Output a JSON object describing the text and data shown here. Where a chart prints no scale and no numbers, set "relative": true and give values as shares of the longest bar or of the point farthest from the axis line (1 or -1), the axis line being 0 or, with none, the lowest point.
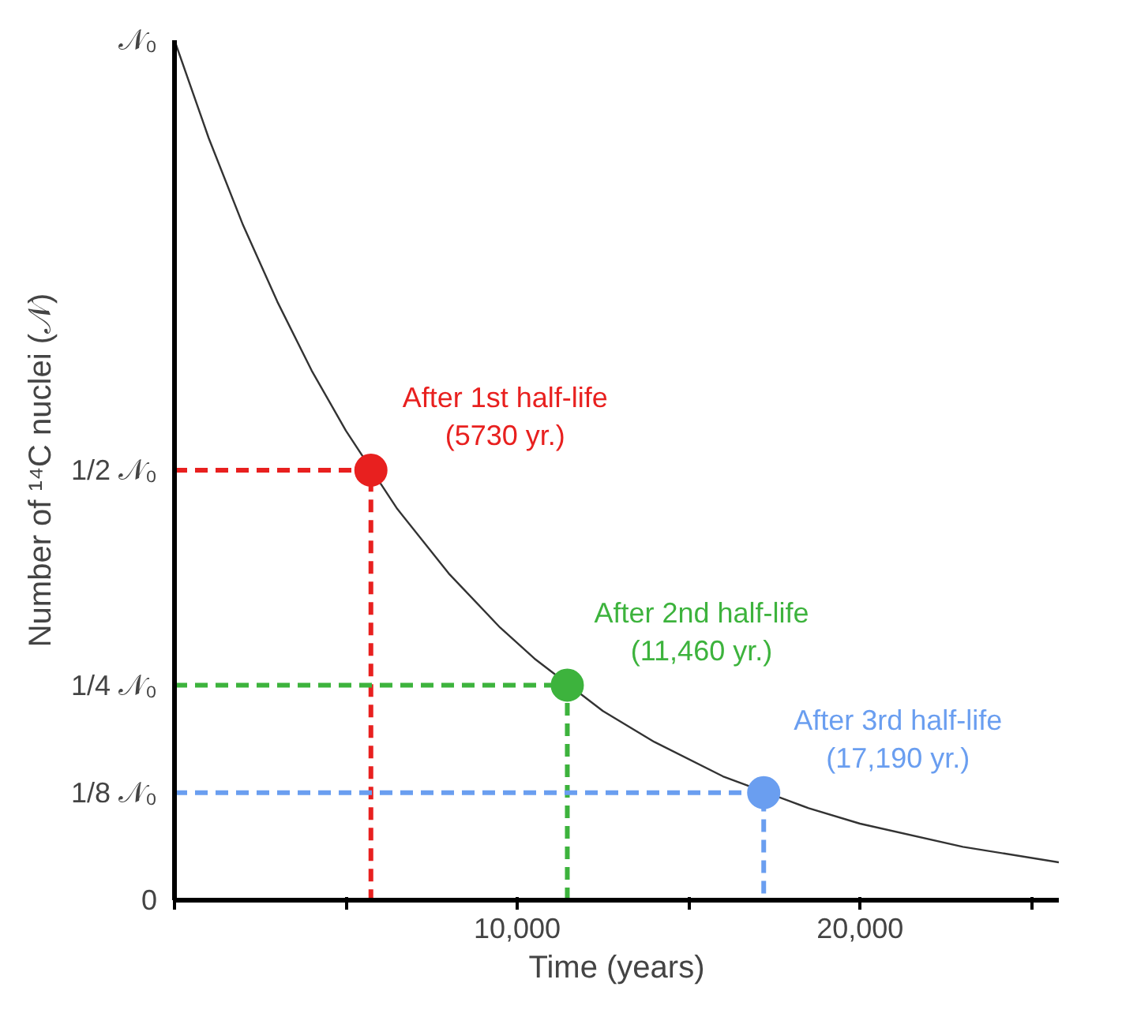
{
  "chart_data": {
    "type": "line",
    "relative": true,
    "xlabel": "Time (years)",
    "ylabel": "Number of ¹⁴C nuclei (𝒩)",
    "xlim": [
      0,
      25800
    ],
    "xticks": [
      {
        "value": 0,
        "label": null
      },
      {
        "value": 5000,
        "label": null
      },
      {
        "value": 10000,
        "label": "10,000"
      },
      {
        "value": 15000,
        "label": null
      },
      {
        "value": 20000,
        "label": "20,000"
      },
      {
        "value": 25000,
        "label": null
      }
    ],
    "grid": false,
    "series": [
      {
        "color": "#333333",
        "line_style": "solid",
        "marker": "none",
        "x": [
          0,
          1000,
          2000,
          3000,
          4000,
          5000,
          6500,
          8000,
          9500,
          10500,
          12500,
          14000,
          16000,
          18500,
          20000,
          23000,
          25800
        ],
        "values": [
          1,
          0.886,
          0.785,
          0.696,
          0.616,
          0.546,
          0.455,
          0.38,
          0.317,
          0.281,
          0.22,
          0.184,
          0.144,
          0.107,
          0.089,
          0.062,
          0.044
        ]
      },
      {
        "type": "line",
        "color": "#e8201f",
        "line_style": "dashed",
        "marker": "none",
        "x": [
          0,
          5730,
          5730
        ],
        "values": [
          0.5,
          0.5,
          0
        ]
      },
      {
        "type": "line",
        "color": "#3db33d",
        "line_style": "dashed",
        "marker": "none",
        "x": [
          0,
          11460,
          11460
        ],
        "values": [
          0.25,
          0.25,
          0
        ]
      },
      {
        "type": "line",
        "color": "#6a9ef0",
        "line_style": "dashed",
        "marker": "none",
        "x": [
          0,
          17190,
          17190
        ],
        "values": [
          0.125,
          0.125,
          0
        ]
      },
      {
        "type": "scatter",
        "marker": "circle",
        "colors": [
          "#e8201f",
          "#3db33d",
          "#6a9ef0"
        ],
        "x": [
          5730,
          11460,
          17190
        ],
        "values": [
          0.5,
          0.25,
          0.125
        ]
      }
    ],
    "annotations": [
      {
        "text": "𝒩₀",
        "x": 0,
        "y": 1
      },
      {
        "text": "1/2 𝒩₀",
        "x": 0,
        "y": 0.5
      },
      {
        "text": "1/4 𝒩₀",
        "x": 0,
        "y": 0.25
      },
      {
        "text": "1/8 𝒩₀",
        "x": 0,
        "y": 0.125
      },
      "0",
      {
        "text": "After 1st half-life\n(5730 yr.)",
        "x": 5730,
        "y": 0.5
      },
      {
        "text": "After 2nd half-life\n(11,460 yr.)",
        "x": 11460,
        "y": 0.25
      },
      {
        "text": "After 3rd half-life\n(17,190 yr.)",
        "x": 17190,
        "y": 0.125
      }
    ]
  }
}
